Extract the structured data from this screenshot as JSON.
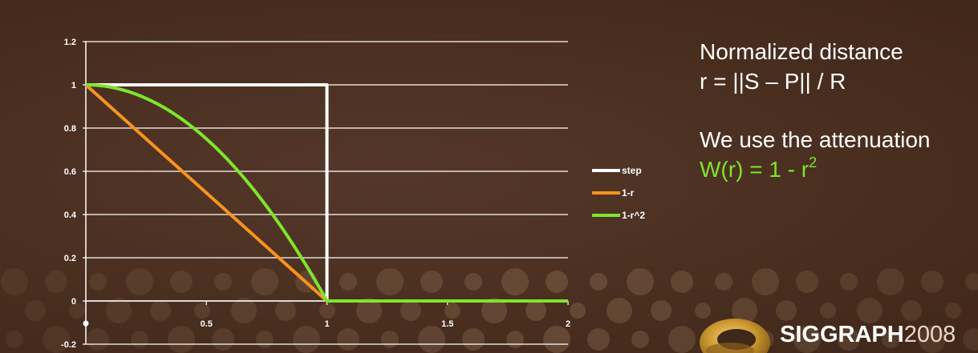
{
  "chart_data": {
    "type": "line",
    "x": [
      0,
      0.1,
      0.2,
      0.3,
      0.4,
      0.5,
      0.6,
      0.7,
      0.8,
      0.9,
      1.0,
      1.1,
      1.2,
      1.3,
      1.4,
      1.5,
      1.6,
      1.7,
      1.8,
      1.9,
      2.0
    ],
    "series": [
      {
        "name": "step",
        "color": "#ffffff",
        "values": [
          1,
          1,
          1,
          1,
          1,
          1,
          1,
          1,
          1,
          1,
          1,
          0,
          0,
          0,
          0,
          0,
          0,
          0,
          0,
          0,
          0
        ]
      },
      {
        "name": "1-r",
        "color": "#f7931e",
        "values": [
          1,
          0.9,
          0.8,
          0.7,
          0.6,
          0.5,
          0.4,
          0.3,
          0.2,
          0.1,
          0,
          0,
          0,
          0,
          0,
          0,
          0,
          0,
          0,
          0,
          0
        ]
      },
      {
        "name": "1-r^2",
        "color": "#7ee52c",
        "values": [
          1,
          0.99,
          0.96,
          0.91,
          0.84,
          0.75,
          0.64,
          0.51,
          0.36,
          0.19,
          0,
          0,
          0,
          0,
          0,
          0,
          0,
          0,
          0,
          0,
          0
        ]
      }
    ],
    "x_ticks": [
      "0",
      "0.5",
      "1",
      "1.5",
      "2"
    ],
    "y_ticks": [
      "-0.2",
      "0",
      "0.2",
      "0.4",
      "0.6",
      "0.8",
      "1",
      "1.2"
    ],
    "xlim": [
      0,
      2
    ],
    "ylim": [
      -0.2,
      1.2
    ],
    "grid": true,
    "legend_position": "right"
  },
  "text": {
    "line1": "Normalized distance",
    "line2": "r = ||S – P|| / R",
    "line3": "We use the attenuation",
    "line4_prefix": "W(r) = 1 - r",
    "line4_exponent": "2"
  },
  "logo": {
    "brand": "SIGGRAPH",
    "year": "2008"
  },
  "colors": {
    "background": "#4a2f1e",
    "grid": "#ffffff",
    "accent_green": "#7ee52c",
    "accent_orange": "#f7931e",
    "logo_gold": "#c9962e"
  }
}
